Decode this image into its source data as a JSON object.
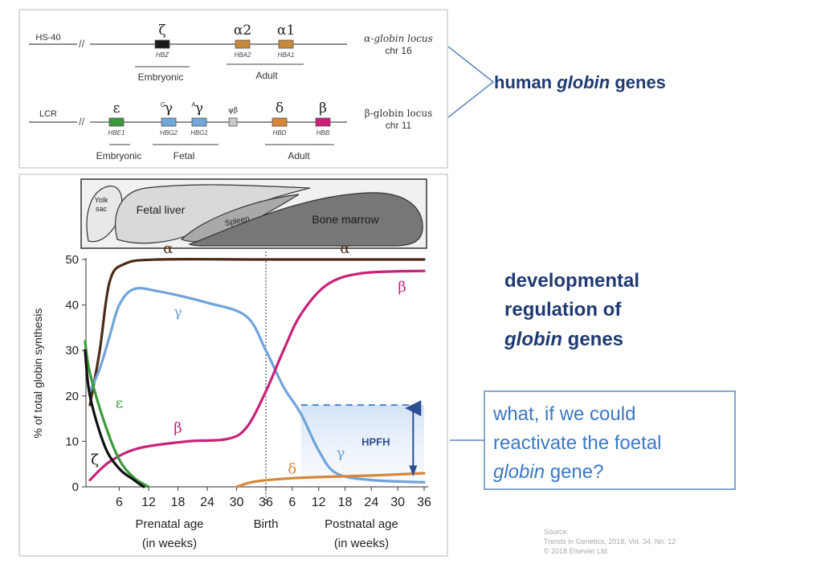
{
  "loci": {
    "alpha": {
      "control_label": "HS-40",
      "locus_label": [
        "α-globin locus",
        "chr 16"
      ],
      "genes": [
        {
          "symbol": "ζ",
          "sup": "",
          "name": "HBZ",
          "color": "#1a1a1a"
        },
        {
          "symbol": "α2",
          "sup": "",
          "name": "HBA2",
          "color": "#c8893b"
        },
        {
          "symbol": "α1",
          "sup": "",
          "name": "HBA1",
          "color": "#c8893b"
        }
      ],
      "stage_labels": [
        "Embryonic",
        "Adult"
      ]
    },
    "beta": {
      "control_label": "LCR",
      "locus_label": [
        "β-globin locus",
        "chr 11"
      ],
      "genes": [
        {
          "symbol": "ε",
          "sup": "",
          "name": "HBE1",
          "color": "#3a9a3a"
        },
        {
          "symbol": "γ",
          "sup": "G",
          "name": "HBG2",
          "color": "#6ea6dd"
        },
        {
          "symbol": "γ",
          "sup": "A",
          "name": "HBG1",
          "color": "#6ea6dd"
        },
        {
          "symbol": "ψβ",
          "sup": "",
          "name": "",
          "color": "#c9c9c9"
        },
        {
          "symbol": "δ",
          "sup": "",
          "name": "HBD",
          "color": "#d8863a"
        },
        {
          "symbol": "β",
          "sup": "",
          "name": "HBB",
          "color": "#cc1f7a"
        }
      ],
      "stage_labels": [
        "Embryonic",
        "Fetal",
        "Adult"
      ]
    }
  },
  "headings": {
    "genes_prefix": "human ",
    "genes_italic": "globin",
    "genes_suffix": " genes",
    "regulation_lines": [
      "developmental",
      "regulation of"
    ],
    "regulation_italic": "globin",
    "regulation_suffix": " genes"
  },
  "callout": {
    "lines": [
      "what, if we could",
      "reactivate the foetal"
    ],
    "italic": "globin",
    "suffix": " gene?"
  },
  "source": {
    "lines": [
      "Source:",
      "Trends in Genetics, 2018, Vol. 34, No. 12",
      "© 2018 Elsevier Ltd."
    ]
  },
  "hematopoiesis_sites": [
    "Yolk",
    "sac",
    "Fetal liver",
    "Spleen",
    "Bone marrow"
  ],
  "chart_data": {
    "type": "line",
    "ylabel": "% of total globin synthesis",
    "ylim": [
      0,
      50
    ],
    "yticks": [
      0,
      10,
      20,
      30,
      40,
      50
    ],
    "xticks_prenatal": [
      6,
      12,
      18,
      24,
      30,
      36
    ],
    "xticks_postnatal": [
      6,
      12,
      18,
      24,
      30,
      36
    ],
    "xlabel_prenatal": [
      "Prenatal age",
      "(in weeks)"
    ],
    "xlabel_birth": "Birth",
    "xlabel_postnatal": [
      "Postnatal age",
      "(in weeks)"
    ],
    "annotation": "HPFH",
    "series": [
      {
        "name": "α",
        "color": "#4a2c16",
        "phase_points": [
          [
            0,
            18
          ],
          [
            2,
            30
          ],
          [
            4,
            45
          ],
          [
            7,
            49
          ],
          [
            14,
            50
          ],
          [
            36,
            50
          ],
          [
            72,
            50
          ]
        ],
        "labels_at": [
          [
            16,
            52.5
          ],
          [
            54,
            52.5
          ]
        ]
      },
      {
        "name": "γ",
        "color": "#6fa3da",
        "phase_points": [
          [
            0,
            21
          ],
          [
            2,
            26
          ],
          [
            4,
            33
          ],
          [
            6,
            40
          ],
          [
            9,
            43.5
          ],
          [
            14,
            43
          ],
          [
            24,
            40.5
          ],
          [
            32,
            37.5
          ],
          [
            36,
            30
          ],
          [
            40,
            22
          ],
          [
            44,
            16
          ],
          [
            48,
            8
          ],
          [
            52,
            3
          ],
          [
            60,
            1.5
          ],
          [
            72,
            1
          ]
        ],
        "labels_at": [
          [
            18,
            38.5
          ],
          [
            53,
            7.5
          ]
        ]
      },
      {
        "name": "β",
        "color": "#c8227a",
        "phase_points": [
          [
            0,
            1.5
          ],
          [
            4,
            5.5
          ],
          [
            10,
            8.5
          ],
          [
            20,
            10
          ],
          [
            28,
            10.5
          ],
          [
            32,
            13
          ],
          [
            36,
            21
          ],
          [
            40,
            30
          ],
          [
            44,
            38
          ],
          [
            50,
            44.5
          ],
          [
            58,
            47
          ],
          [
            72,
            47.5
          ]
        ],
        "labels_at": [
          [
            18,
            13
          ],
          [
            67,
            44
          ]
        ]
      },
      {
        "name": "ε",
        "color": "#3a9a3a",
        "phase_points": [
          [
            -1,
            32
          ],
          [
            0,
            25
          ],
          [
            3,
            14
          ],
          [
            6,
            6
          ],
          [
            9,
            2
          ],
          [
            12,
            0
          ]
        ],
        "labels_at": [
          [
            6,
            18.5
          ]
        ]
      },
      {
        "name": "ζ",
        "color": "#111111",
        "phase_points": [
          [
            -1,
            30
          ],
          [
            0,
            20
          ],
          [
            3,
            9
          ],
          [
            6,
            4
          ],
          [
            9,
            1.5
          ],
          [
            11,
            0
          ]
        ],
        "labels_at": [
          [
            1,
            6
          ]
        ]
      },
      {
        "name": "δ",
        "color": "#d8863a",
        "phase_points": [
          [
            30,
            0
          ],
          [
            34,
            1.2
          ],
          [
            44,
            2
          ],
          [
            60,
            2.5
          ],
          [
            72,
            3
          ]
        ],
        "labels_at": [
          [
            42,
            4
          ]
        ]
      }
    ],
    "hpfh_level": 18
  }
}
